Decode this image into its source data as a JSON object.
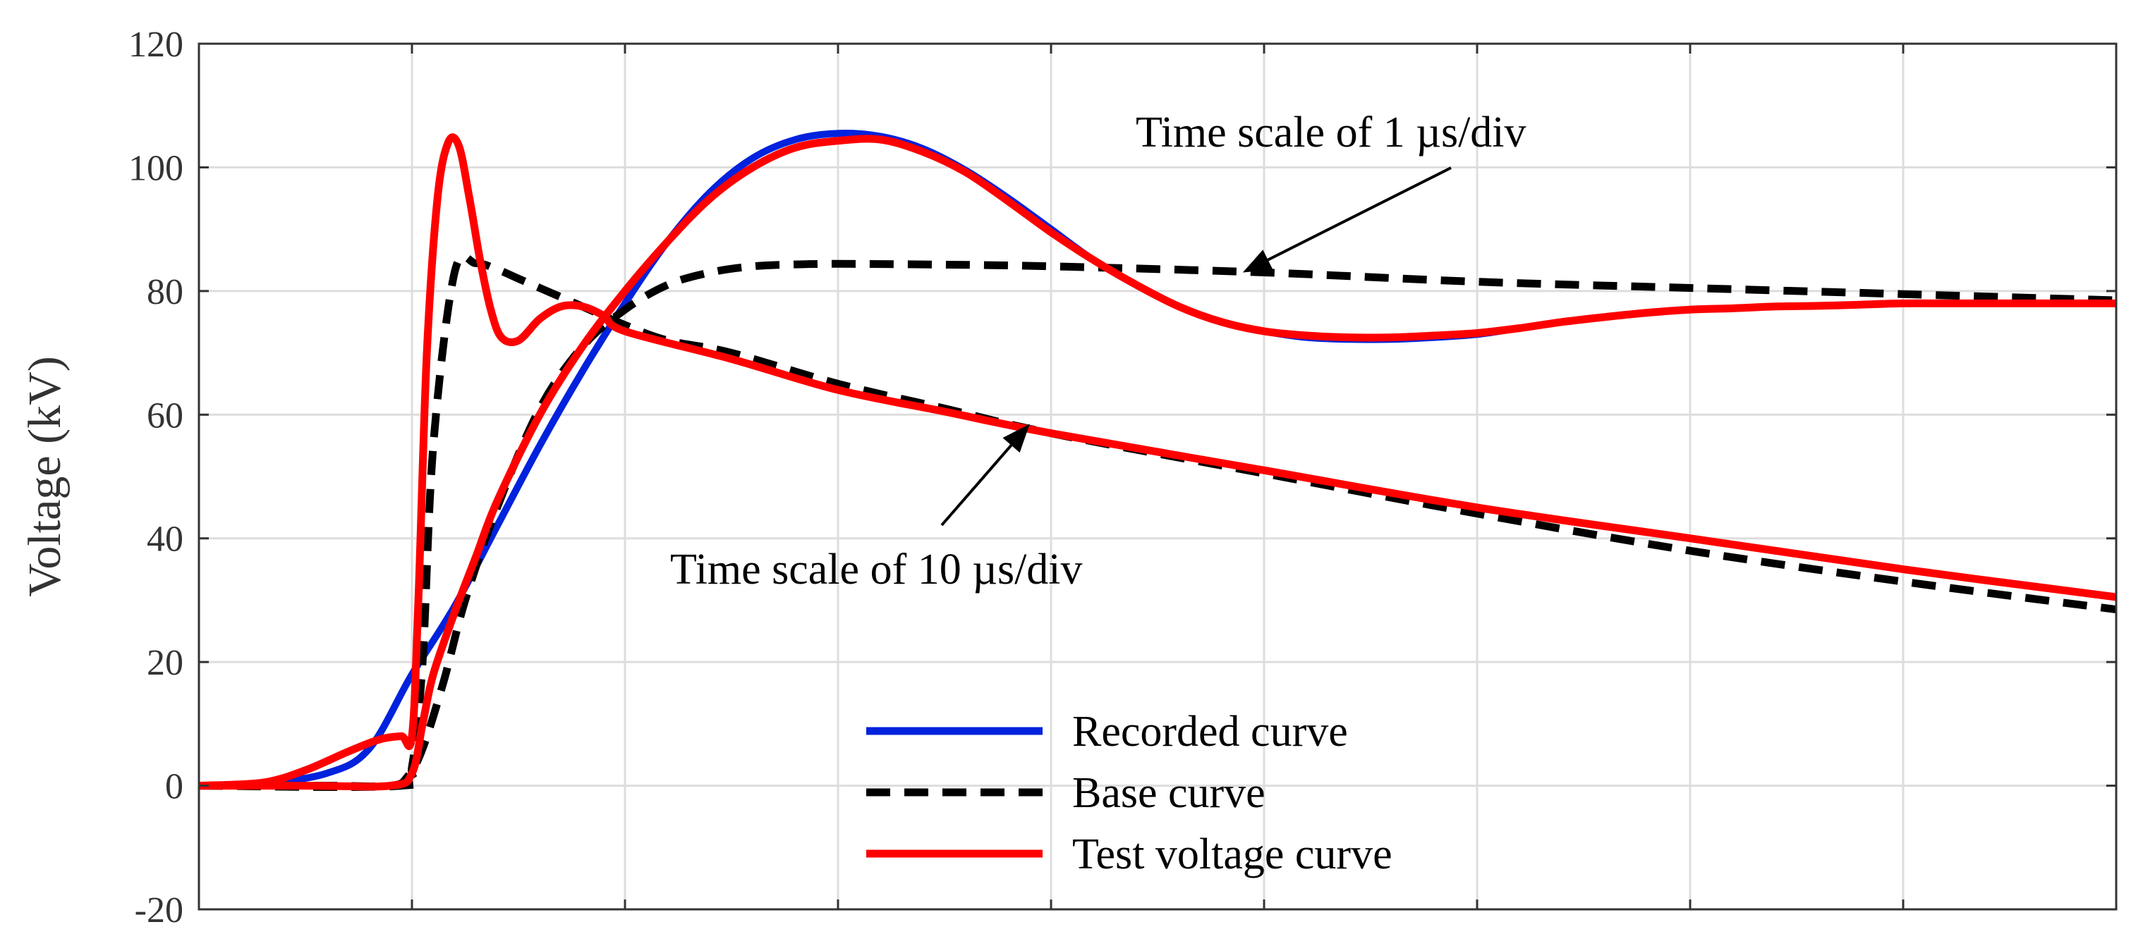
{
  "chart_data": {
    "type": "line",
    "title": "",
    "xlabel": "",
    "ylabel": "Voltage (kV)",
    "xlim": [
      0,
      9
    ],
    "ylim": [
      -20,
      120
    ],
    "x_divisions": 9,
    "yticks": [
      -20,
      0,
      20,
      40,
      60,
      80,
      100,
      120
    ],
    "grid": true,
    "legend_position": "bottom-center",
    "colors": {
      "recorded": "#0022dd",
      "base": "#000000",
      "test": "#ff0000",
      "grid": "#dddddd",
      "axis": "#333333"
    },
    "annotations": [
      {
        "id": "ann1",
        "text": "Time scale of 1 µs/div",
        "target_x": 4.9,
        "target_y": 83
      },
      {
        "id": "ann2",
        "text": "Time scale of 10 µs/div",
        "target_x": 3.9,
        "target_y": 58.5
      }
    ],
    "legend": [
      {
        "key": "recorded",
        "label": "Recorded curve",
        "style": "solid"
      },
      {
        "key": "base",
        "label": "Base curve",
        "style": "dashed"
      },
      {
        "key": "test",
        "label": "Test voltage curve",
        "style": "solid"
      }
    ],
    "series": [
      {
        "name": "Recorded curve (1 µs/div)",
        "key": "recorded",
        "style": "solid",
        "x": [
          0,
          0.3,
          0.6,
          0.8,
          1.0,
          1.2,
          1.4,
          1.6,
          1.8,
          2.0,
          2.2,
          2.4,
          2.6,
          2.8,
          3.0,
          3.2,
          3.4,
          3.6,
          3.8,
          4.0,
          4.2,
          4.4,
          4.6,
          4.8,
          5.0,
          5.2,
          5.4,
          5.6,
          5.8,
          6.0,
          6.2,
          6.4,
          6.6,
          6.8,
          7.0,
          7.2,
          7.4,
          7.6,
          7.8,
          8.0,
          8.2,
          8.4,
          8.6,
          8.8,
          9.0
        ],
        "y": [
          0,
          0.4,
          2,
          6,
          18,
          29,
          42,
          55,
          67,
          78,
          88,
          96,
          101.5,
          104.5,
          105.5,
          105,
          103,
          99.5,
          95,
          90,
          85,
          81,
          77.5,
          75,
          73.5,
          72.5,
          72.2,
          72.2,
          72.5,
          73,
          74,
          75,
          75.8,
          76.5,
          77,
          77.2,
          77.5,
          77.6,
          77.8,
          78,
          78,
          78,
          78,
          78,
          78
        ]
      },
      {
        "name": "Base curve (1 µs/div)",
        "key": "base",
        "style": "dashed",
        "x": [
          0,
          0.6,
          0.9,
          0.98,
          1.05,
          1.15,
          1.25,
          1.4,
          1.6,
          1.8,
          2.0,
          2.2,
          2.4,
          2.6,
          2.8,
          3.0,
          3.4,
          4.0,
          5.0,
          6.0,
          7.0,
          8.0,
          9.0
        ],
        "y": [
          0,
          0,
          0,
          1.5,
          6,
          17,
          30,
          45,
          61,
          71,
          77,
          81,
          83,
          84,
          84.3,
          84.4,
          84.3,
          84,
          83,
          81.5,
          80.5,
          79.5,
          78.5
        ]
      },
      {
        "name": "Test voltage curve (1 µs/div)",
        "key": "test",
        "style": "solid",
        "x": [
          0,
          0.5,
          0.9,
          1.0,
          1.05,
          1.1,
          1.2,
          1.3,
          1.4,
          1.6,
          1.8,
          2.0,
          2.2,
          2.4,
          2.6,
          2.8,
          3.0,
          3.2,
          3.4,
          3.6,
          3.8,
          4.0,
          4.2,
          4.4,
          4.6,
          4.8,
          5.0,
          5.2,
          5.4,
          5.6,
          5.8,
          6.0,
          6.2,
          6.4,
          6.6,
          6.8,
          7.0,
          7.2,
          7.4,
          7.6,
          7.8,
          8.0,
          8.2,
          8.4,
          8.6,
          8.8,
          9.0
        ],
        "y": [
          0,
          0,
          0,
          2,
          10,
          18,
          28,
          37,
          46,
          60,
          71,
          80,
          88,
          95,
          100,
          103.2,
          104.3,
          104.5,
          102.5,
          99.2,
          94.5,
          89.5,
          85,
          81,
          77.5,
          75,
          73.5,
          72.8,
          72.5,
          72.5,
          72.8,
          73.2,
          74,
          75,
          75.8,
          76.5,
          77,
          77.2,
          77.5,
          77.6,
          77.8,
          78,
          78,
          78,
          78,
          78,
          78
        ]
      },
      {
        "name": "Recorded curve (10 µs/div)",
        "key": "recorded",
        "style": "solid",
        "x": [
          0,
          0.3,
          0.5,
          0.7,
          0.85,
          0.95,
          1.0,
          1.03,
          1.07,
          1.12,
          1.17,
          1.22,
          1.27,
          1.32,
          1.37,
          1.42,
          1.5,
          1.6,
          1.7,
          1.8,
          1.9,
          2.0,
          2.5,
          3.0,
          3.5,
          4.0,
          5.0,
          6.0,
          7.0,
          8.0,
          9.0
        ],
        "y": [
          0,
          0.5,
          2.5,
          5.5,
          7.5,
          8,
          8,
          30,
          70,
          95,
          104,
          103.5,
          95,
          85,
          77,
          72.5,
          72,
          75.5,
          77.5,
          77.5,
          76,
          73.5,
          69,
          64,
          60.5,
          57,
          51,
          45,
          40,
          35,
          30.5
        ]
      },
      {
        "name": "Base curve (10 µs/div)",
        "key": "base",
        "style": "dashed",
        "x": [
          0,
          0.95,
          1.0,
          1.05,
          1.1,
          1.2,
          1.3,
          1.4,
          1.5,
          1.6,
          1.7,
          1.8,
          2.0,
          2.2,
          2.5,
          3.0,
          3.5,
          4.0,
          5.0,
          6.0,
          7.0,
          8.0,
          9.0
        ],
        "y": [
          0,
          0,
          3,
          20,
          55,
          83,
          84.5,
          83.5,
          82,
          80.5,
          79,
          77.5,
          74.5,
          72,
          70,
          65,
          61,
          57,
          50.5,
          44,
          38,
          33,
          28.5
        ]
      },
      {
        "name": "Test voltage curve (10 µs/div)",
        "key": "test",
        "style": "solid",
        "x": [
          0,
          0.3,
          0.5,
          0.7,
          0.85,
          0.95,
          1.0,
          1.03,
          1.07,
          1.12,
          1.17,
          1.22,
          1.27,
          1.32,
          1.37,
          1.42,
          1.5,
          1.6,
          1.7,
          1.8,
          1.9,
          2.0,
          2.5,
          3.0,
          3.5,
          4.0,
          5.0,
          6.0,
          7.0,
          8.0,
          9.0
        ],
        "y": [
          0,
          0.5,
          2.5,
          5.5,
          7.5,
          8,
          8,
          30,
          70,
          95,
          104,
          103.5,
          95,
          85,
          77,
          72.5,
          72,
          75.5,
          77.5,
          77.5,
          76,
          73.5,
          69,
          64,
          60.5,
          57,
          51,
          45,
          40,
          35,
          30.5
        ]
      }
    ]
  }
}
